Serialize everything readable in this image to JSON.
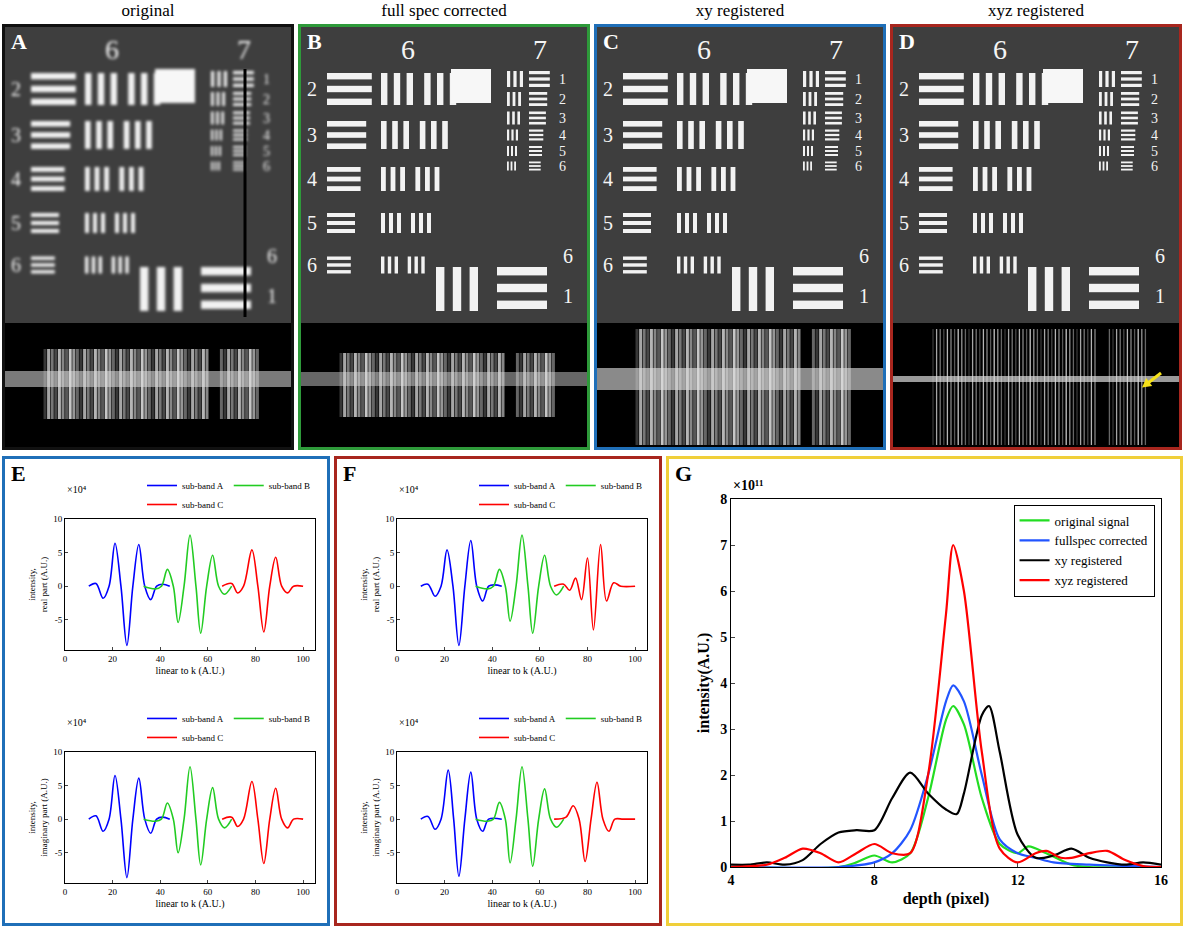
{
  "images": {
    "panels": [
      {
        "label": "A",
        "title": "original"
      },
      {
        "label": "B",
        "title": "full spec corrected"
      },
      {
        "label": "C",
        "title": "xy registered"
      },
      {
        "label": "D",
        "title": "xyz registered"
      }
    ],
    "group_labels": [
      "6",
      "7"
    ],
    "left_elements": [
      "2",
      "3",
      "4",
      "5",
      "6"
    ],
    "right_elements": [
      "1",
      "2",
      "3",
      "4",
      "5",
      "6"
    ],
    "bottom_labels": [
      "6",
      "1"
    ]
  },
  "chart_data": [
    {
      "panel": "E",
      "type": "line",
      "subplots": [
        {
          "xlabel": "linear to k (A.U.)",
          "ylabel": "intensity, real part (A.U.)",
          "xlim": [
            0,
            105
          ],
          "xticks": [
            0,
            20,
            40,
            60,
            80,
            100
          ],
          "ylim": [
            -9.5,
            10
          ],
          "yticks": [
            -5,
            0,
            5,
            10
          ],
          "y_multiplier": "×10⁴",
          "legend": "top",
          "series": [
            {
              "name": "sub-band A",
              "color": "#0000ff",
              "x": [
                10,
                13,
                16,
                18.5,
                21,
                23.5,
                26,
                28.5,
                31,
                33.5,
                36,
                38.5,
                41,
                44
              ],
              "values": [
                0,
                0.4,
                -1.8,
                0,
                6.4,
                0,
                -8.8,
                0,
                6.2,
                0,
                -2,
                0,
                0.3,
                0
              ]
            },
            {
              "name": "sub-band B",
              "color": "#22cc22",
              "x": [
                33,
                38,
                40.5,
                43,
                45.5,
                47.5,
                50,
                52.5,
                55,
                57,
                59.5,
                62,
                64.5,
                67,
                70
              ],
              "values": [
                0,
                -0.4,
                0,
                2.5,
                0,
                -5.4,
                0,
                7.6,
                0,
                -7,
                0,
                4.6,
                0,
                -1.2,
                0
              ]
            },
            {
              "name": "sub-band C",
              "color": "#ff0000",
              "x": [
                66,
                70,
                72.5,
                75,
                78.5,
                81,
                83.5,
                86,
                88.5,
                91,
                93.5,
                96,
                100
              ],
              "values": [
                0,
                0.4,
                -1,
                0,
                5.4,
                0,
                -6.8,
                0,
                4.3,
                0,
                -1,
                0,
                0
              ]
            }
          ]
        },
        {
          "xlabel": "linear to k (A.U.)",
          "ylabel": "intensity, imaginary part (A.U.)",
          "xlim": [
            0,
            105
          ],
          "xticks": [
            0,
            20,
            40,
            60,
            80,
            100
          ],
          "ylim": [
            -9.5,
            10
          ],
          "yticks": [
            -5,
            0,
            5,
            10
          ],
          "y_multiplier": "×10⁴",
          "legend": "top",
          "series": [
            {
              "name": "sub-band A",
              "color": "#0000ff",
              "x": [
                10,
                13,
                16,
                18.5,
                21,
                23.5,
                26,
                28.5,
                31,
                33.5,
                36,
                38.5,
                41,
                44
              ],
              "values": [
                0,
                0.5,
                -1.8,
                0,
                6.5,
                0,
                -8.7,
                0,
                6.1,
                0,
                -2.1,
                0,
                0.3,
                0
              ]
            },
            {
              "name": "sub-band B",
              "color": "#22cc22",
              "x": [
                33,
                38,
                40.5,
                43,
                45.5,
                47.5,
                50,
                52.5,
                55,
                57,
                59.5,
                62,
                64.5,
                67,
                70
              ],
              "values": [
                0,
                -0.3,
                0,
                2.4,
                0,
                -5,
                0,
                7.8,
                0,
                -6.8,
                0,
                4.7,
                0,
                -1.3,
                0
              ]
            },
            {
              "name": "sub-band C",
              "color": "#ff0000",
              "x": [
                66,
                70,
                72.5,
                75,
                78.5,
                81,
                83.5,
                86,
                88.5,
                91,
                93.5,
                96,
                100
              ],
              "values": [
                0,
                0.3,
                -1.1,
                0,
                5.6,
                0,
                -6.6,
                0,
                4.6,
                0,
                -1.3,
                0,
                0
              ]
            }
          ]
        }
      ]
    },
    {
      "panel": "F",
      "type": "line",
      "subplots": [
        {
          "xlabel": "linear to k (A.U.)",
          "ylabel": "intensity, real part (A.U.)",
          "xlim": [
            0,
            105
          ],
          "xticks": [
            0,
            20,
            40,
            60,
            80,
            100
          ],
          "ylim": [
            -9.5,
            10
          ],
          "yticks": [
            -5,
            0,
            5,
            10
          ],
          "y_multiplier": "×10⁴",
          "legend": "top",
          "series": [
            {
              "name": "sub-band A",
              "color": "#0000ff",
              "x": [
                10,
                13,
                16,
                18.5,
                21,
                23.5,
                26,
                28.5,
                31,
                33.5,
                36,
                38.5,
                41,
                44
              ],
              "values": [
                0,
                0.3,
                -1.5,
                0,
                5.4,
                0,
                -8.8,
                0,
                6.8,
                0,
                -2.2,
                0,
                0.2,
                0
              ]
            },
            {
              "name": "sub-band B",
              "color": "#22cc22",
              "x": [
                33,
                38,
                40.5,
                43,
                45.5,
                47.5,
                50,
                52.5,
                55,
                57,
                59.5,
                62,
                64.5,
                67,
                70
              ],
              "values": [
                0,
                -0.4,
                0,
                2.5,
                0,
                -5.2,
                0,
                7.6,
                0,
                -7,
                0,
                4.6,
                0,
                -1.3,
                0
              ]
            },
            {
              "name": "sub-band C",
              "color": "#ff0000",
              "x": [
                66,
                70,
                72.5,
                75,
                77.5,
                80,
                82.5,
                85.5,
                88,
                91,
                94,
                100
              ],
              "values": [
                0,
                0.3,
                -0.6,
                1.2,
                -2,
                4.2,
                -6.5,
                6.2,
                -2.2,
                0.5,
                0,
                0
              ]
            }
          ]
        },
        {
          "xlabel": "linear to k (A.U.)",
          "ylabel": "intensity, imaginary part (A.U.)",
          "xlim": [
            0,
            105
          ],
          "xticks": [
            0,
            20,
            40,
            60,
            80,
            100
          ],
          "ylim": [
            -9.5,
            10
          ],
          "yticks": [
            -5,
            0,
            5,
            10
          ],
          "y_multiplier": "×10⁴",
          "legend": "top",
          "series": [
            {
              "name": "sub-band A",
              "color": "#0000ff",
              "x": [
                10,
                13,
                16,
                18.5,
                21.5,
                23.8,
                26,
                28.5,
                31,
                33.5,
                36,
                38.5,
                44
              ],
              "values": [
                0,
                0.4,
                -1.5,
                0,
                7.3,
                0,
                -8.5,
                0,
                7,
                0,
                -1.8,
                0,
                0
              ]
            },
            {
              "name": "sub-band B",
              "color": "#22cc22",
              "x": [
                33,
                38,
                40.5,
                43,
                45.5,
                47.5,
                50,
                52.5,
                55,
                57,
                59.5,
                62,
                64.5,
                67,
                70
              ],
              "values": [
                0,
                -0.3,
                0,
                2.5,
                0,
                -6.5,
                0,
                7.8,
                0,
                -7,
                0,
                4.5,
                0,
                -1.2,
                0
              ]
            },
            {
              "name": "sub-band C",
              "color": "#ff0000",
              "x": [
                66,
                71,
                74,
                76.5,
                79,
                81.5,
                84,
                86.5,
                89,
                91.5,
                95,
                100
              ],
              "values": [
                0,
                0.3,
                2,
                0,
                -6.3,
                0,
                5.5,
                0,
                -1.8,
                0,
                0,
                0
              ]
            }
          ]
        }
      ]
    },
    {
      "panel": "G",
      "type": "line",
      "xlabel": "depth (pixel)",
      "ylabel": "intensity(A.U.)",
      "xlim": [
        4,
        16
      ],
      "xticks": [
        4,
        8,
        12,
        16
      ],
      "ylim": [
        0,
        8
      ],
      "yticks": [
        0,
        1,
        2,
        3,
        4,
        5,
        6,
        7,
        8
      ],
      "y_multiplier": "×10¹¹",
      "legend": "upper right",
      "series": [
        {
          "name": "original signal",
          "color": "#22dd22",
          "x": [
            4,
            7,
            7.5,
            8,
            8.5,
            9,
            9.5,
            10,
            10.2,
            10.5,
            11,
            11.5,
            12,
            12.3,
            12.8,
            13.5,
            14,
            16
          ],
          "values": [
            0,
            0,
            0.1,
            0.25,
            0.1,
            0.3,
            1.5,
            3.2,
            3.5,
            3.1,
            1.5,
            0.5,
            0.3,
            0.45,
            0.3,
            0.05,
            0,
            0
          ]
        },
        {
          "name": "fullspec corrected",
          "color": "#2255ff",
          "x": [
            4,
            7,
            8,
            8.5,
            9,
            9.5,
            10,
            10.2,
            10.5,
            11,
            11.5,
            12,
            12.5,
            13,
            14,
            16
          ],
          "values": [
            0,
            0,
            0.1,
            0.3,
            0.8,
            2,
            3.6,
            3.95,
            3.6,
            2,
            0.6,
            0.3,
            0.2,
            0.1,
            0.05,
            0
          ]
        },
        {
          "name": "xy registered",
          "color": "#000000",
          "x": [
            4,
            4.5,
            5,
            5.5,
            6,
            6.5,
            7,
            7.5,
            8,
            8.5,
            9,
            9.5,
            10,
            10.3,
            10.5,
            11,
            11.2,
            11.5,
            12,
            12.5,
            13,
            13.5,
            14,
            14.5,
            15,
            15.5,
            16
          ],
          "values": [
            0.05,
            0.05,
            0.1,
            0.05,
            0.15,
            0.5,
            0.75,
            0.8,
            0.8,
            1.5,
            2.05,
            1.6,
            1.25,
            1.15,
            1.6,
            3.3,
            3.5,
            2.5,
            0.7,
            0.2,
            0.25,
            0.4,
            0.2,
            0.1,
            0.05,
            0.1,
            0.05
          ]
        },
        {
          "name": "xyz registered",
          "color": "#ff0000",
          "x": [
            4,
            5,
            5.5,
            6,
            6.5,
            7,
            7.5,
            8,
            8.5,
            9,
            9.5,
            10,
            10.2,
            10.5,
            11,
            11.5,
            12,
            12.5,
            12.8,
            13.2,
            13.5,
            14,
            14.5,
            15,
            15.5,
            16
          ],
          "values": [
            0,
            0.05,
            0.2,
            0.4,
            0.3,
            0.1,
            0.3,
            0.5,
            0.3,
            0.3,
            2,
            5.5,
            7,
            6,
            2.5,
            0.4,
            0.1,
            0.3,
            0.35,
            0.2,
            0.2,
            0.3,
            0.35,
            0.15,
            0.02,
            0
          ]
        }
      ]
    }
  ]
}
